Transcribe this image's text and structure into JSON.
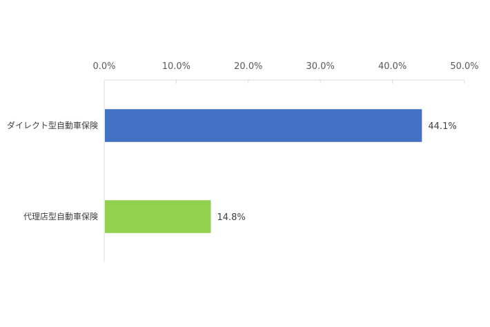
{
  "chart_data": {
    "type": "bar",
    "orientation": "horizontal",
    "categories": [
      "ダイレクト型自動車保険",
      "代理店型自動車保険"
    ],
    "values": [
      44.1,
      14.8
    ],
    "colors": [
      "#4472C4",
      "#92D050"
    ],
    "data_labels": [
      "44.1%",
      "14.8%"
    ],
    "xlim": [
      0,
      50
    ],
    "x_ticks": [
      0,
      10,
      20,
      30,
      40,
      50
    ],
    "x_tick_labels": [
      "0.0%",
      "10.0%",
      "20.0%",
      "30.0%",
      "40.0%",
      "50.0%"
    ],
    "axis_position": "top",
    "grid": false,
    "title": "",
    "xlabel": "",
    "ylabel": ""
  }
}
